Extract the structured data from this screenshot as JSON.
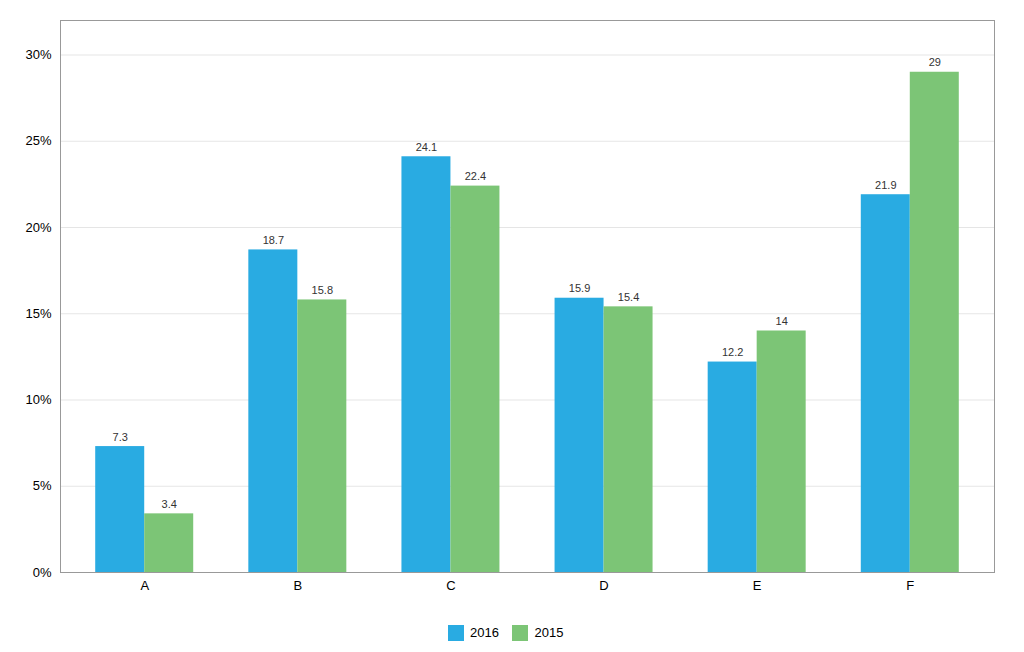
{
  "chart_data": {
    "type": "bar",
    "categories": [
      "A",
      "B",
      "C",
      "D",
      "E",
      "F"
    ],
    "series": [
      {
        "name": "2016",
        "color": "#29ABE2",
        "values": [
          7.3,
          18.7,
          24.1,
          15.9,
          12.2,
          21.9
        ]
      },
      {
        "name": "2015",
        "color": "#7CC576",
        "values": [
          3.4,
          15.8,
          22.4,
          15.4,
          14.0,
          29.0
        ]
      }
    ],
    "ylim": [
      0,
      32
    ],
    "yticks": [
      {
        "value": 0,
        "label": "0%"
      },
      {
        "value": 5,
        "label": "5%"
      },
      {
        "value": 10,
        "label": "10%"
      },
      {
        "value": 15,
        "label": "15%"
      },
      {
        "value": 20,
        "label": "20%"
      },
      {
        "value": 25,
        "label": "25%"
      },
      {
        "value": 30,
        "label": "30%"
      }
    ],
    "grid": true,
    "data_labels": true,
    "legend": "bottom"
  }
}
